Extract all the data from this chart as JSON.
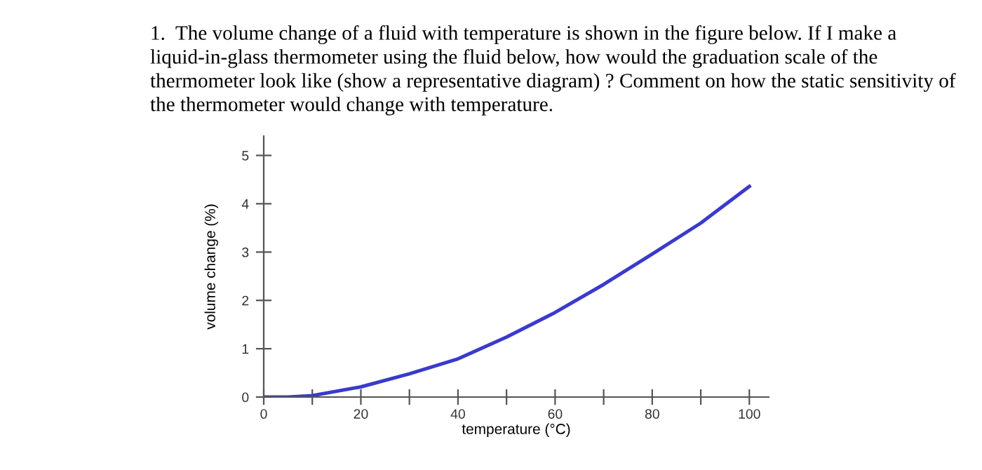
{
  "chart_data": {
    "type": "line",
    "title": "1.  The volume change of a fluid with temperature is shown in the figure below. If I make a liquid-in-glass thermometer using the fluid below, how would the graduation scale of the thermometer look like (show a representative diagram) ? Comment on how the static sensitivity of the thermometer would change with temperature.",
    "xlabel": "temperature (°C)",
    "ylabel": "volume change (%)",
    "x": [
      0,
      5,
      10,
      20,
      30,
      40,
      50,
      60,
      70,
      80,
      90,
      100
    ],
    "series": [
      {
        "color": "#3a3acc",
        "values": [
          0,
          0,
          0.03,
          0.21,
          0.48,
          0.79,
          1.24,
          1.75,
          2.33,
          2.96,
          3.6,
          4.36
        ]
      }
    ],
    "xlim": [
      0,
      104
    ],
    "ylim": [
      0,
      5.4
    ],
    "xticks": [
      0,
      {
        "value": 10,
        "label": null
      },
      20,
      {
        "value": 30,
        "label": null
      },
      40,
      {
        "value": 50,
        "label": null
      },
      60,
      {
        "value": 70,
        "label": null
      },
      80,
      {
        "value": 90,
        "label": null
      },
      100
    ],
    "yticks": [
      0,
      1,
      2,
      3,
      4,
      5
    ],
    "grid": false,
    "legend": false,
    "marker": "none",
    "line_style": "solid"
  }
}
